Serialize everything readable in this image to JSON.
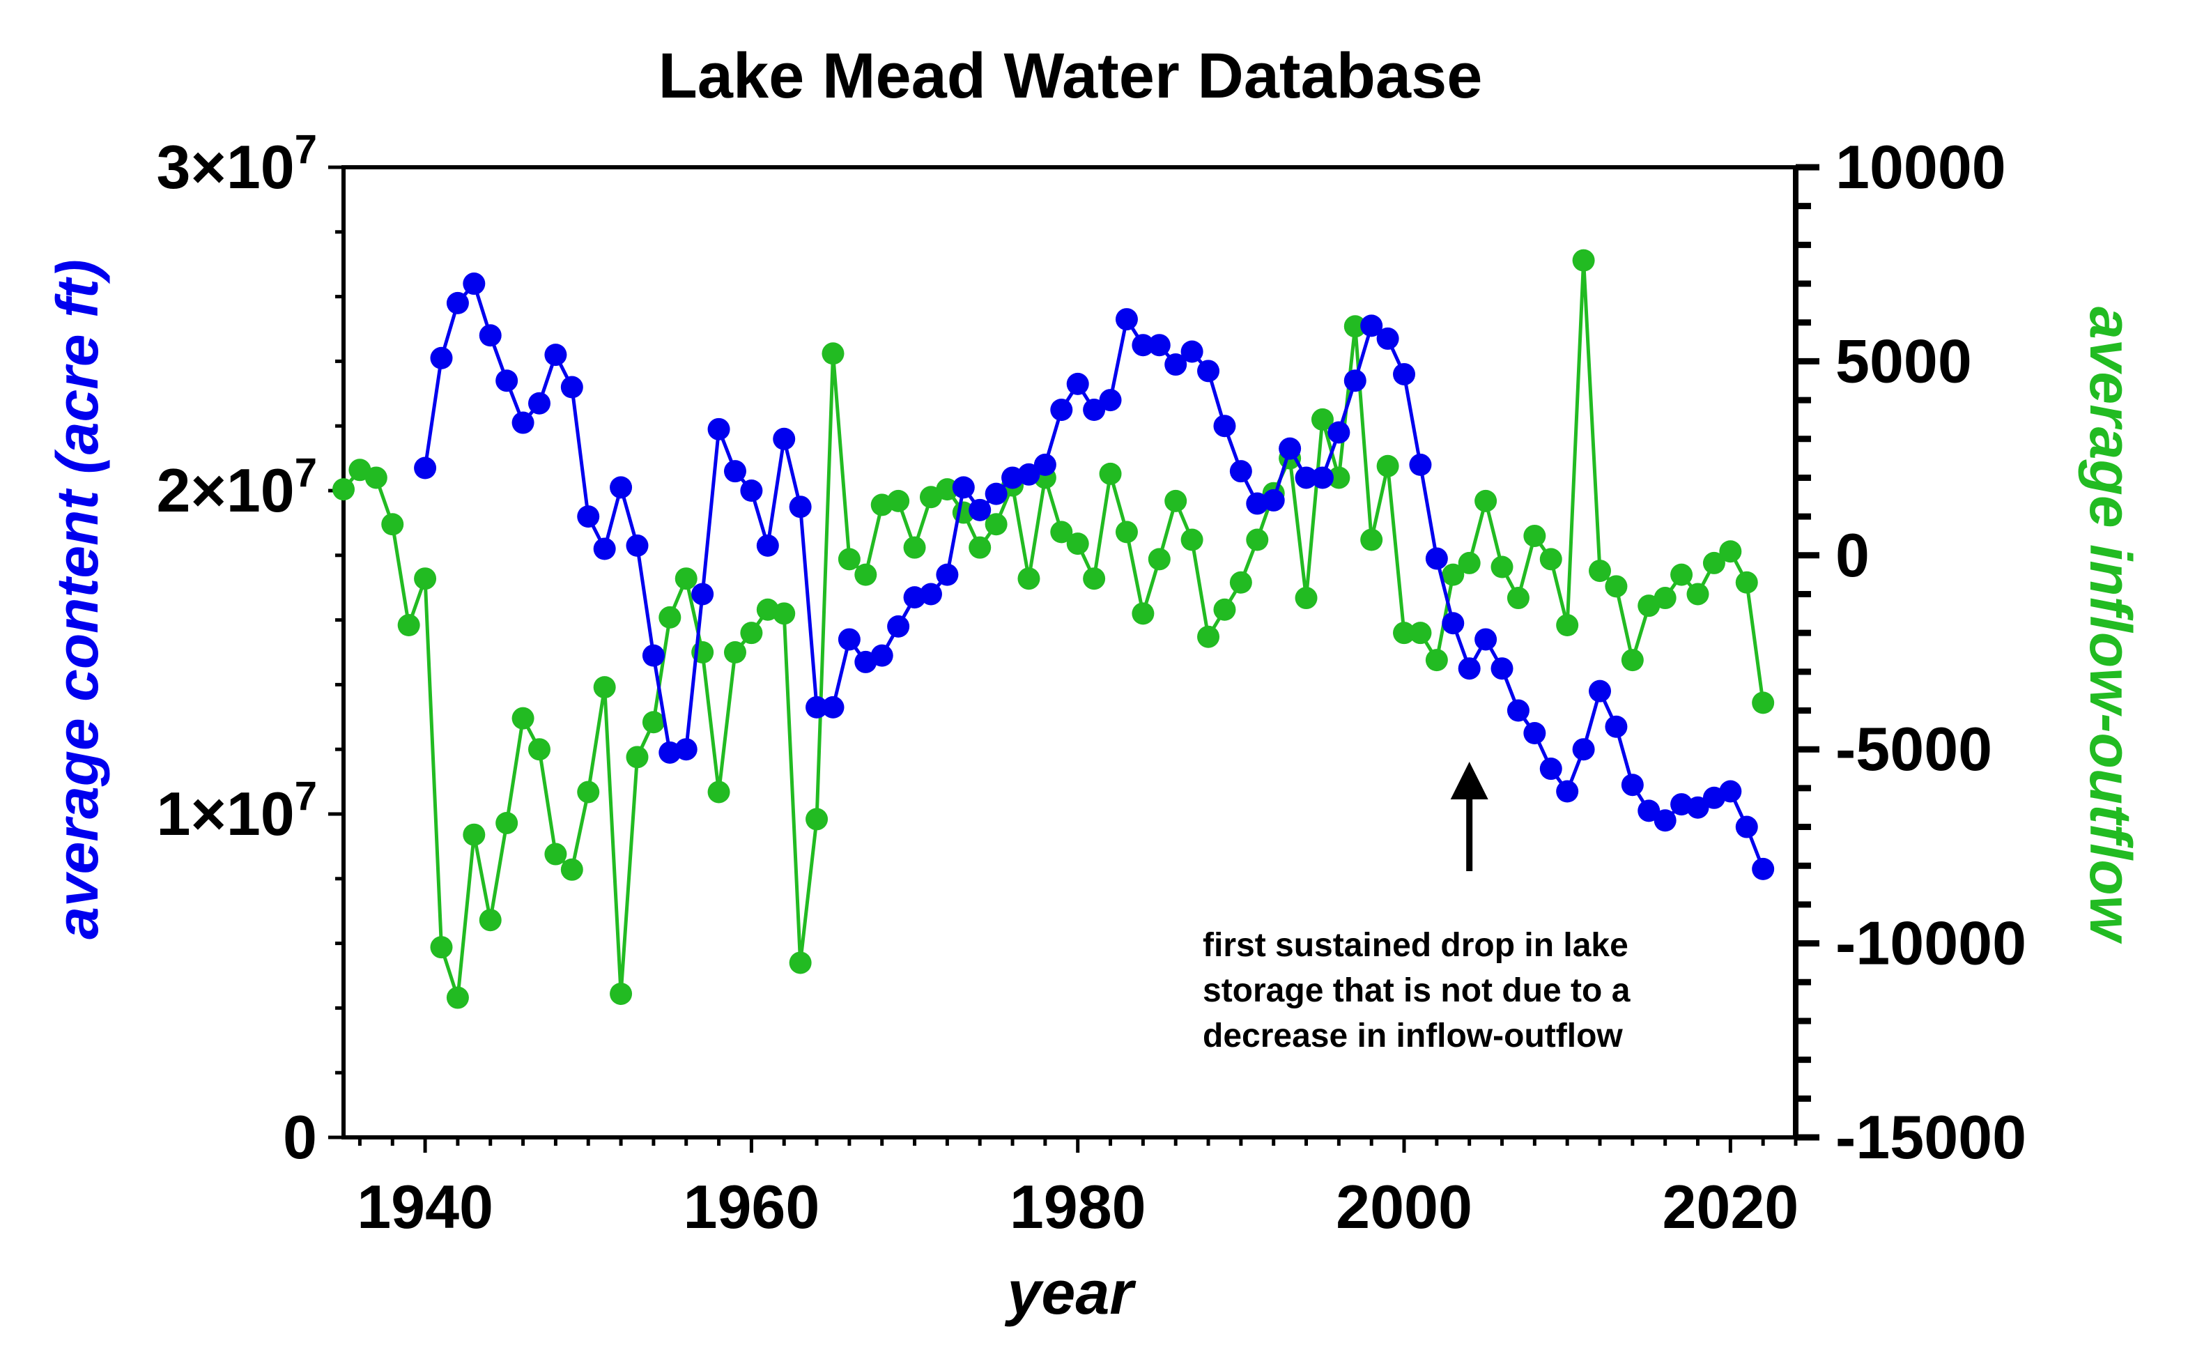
{
  "chart_data": {
    "type": "line",
    "title": "Lake Mead Water Database",
    "xlabel": "year",
    "ylabel_left": "average content (acre ft)",
    "ylabel_right": "average inflow-outflow",
    "xlim": [
      1935,
      2024
    ],
    "ylim_left": [
      0,
      30000000
    ],
    "ylim_right": [
      -15000,
      10000
    ],
    "x_ticks": [
      {
        "value": 1940,
        "label": "1940"
      },
      {
        "value": 1960,
        "label": "1960"
      },
      {
        "value": 1980,
        "label": "1980"
      },
      {
        "value": 2000,
        "label": "2000"
      },
      {
        "value": 2020,
        "label": "2020"
      }
    ],
    "y_left_ticks": [
      {
        "value": 0,
        "mantissa": "0",
        "exponent": ""
      },
      {
        "value": 10000000,
        "mantissa": "1×10",
        "exponent": "7"
      },
      {
        "value": 20000000,
        "mantissa": "2×10",
        "exponent": "7"
      },
      {
        "value": 30000000,
        "mantissa": "3×10",
        "exponent": "7"
      }
    ],
    "y_right_ticks": [
      {
        "value": 10000,
        "label": "10000"
      },
      {
        "value": 5000,
        "label": "5000"
      },
      {
        "value": 0,
        "label": "0"
      },
      {
        "value": -5000,
        "label": "-5000"
      },
      {
        "value": -10000,
        "label": "-10000"
      },
      {
        "value": -15000,
        "label": "-15000"
      }
    ],
    "grid": false,
    "legend": "none",
    "series": [
      {
        "axis": "left",
        "color": "#0000ee",
        "x": [
          1940,
          1941,
          1942,
          1943,
          1944,
          1945,
          1946,
          1947,
          1948,
          1949,
          1950,
          1951,
          1952,
          1953,
          1954,
          1955,
          1956,
          1957,
          1958,
          1959,
          1960,
          1961,
          1962,
          1963,
          1964,
          1965,
          1966,
          1967,
          1968,
          1969,
          1970,
          1971,
          1972,
          1973,
          1974,
          1975,
          1976,
          1977,
          1978,
          1979,
          1980,
          1981,
          1982,
          1983,
          1984,
          1985,
          1986,
          1987,
          1988,
          1989,
          1990,
          1991,
          1992,
          1993,
          1994,
          1995,
          1996,
          1997,
          1998,
          1999,
          2000,
          2001,
          2002,
          2003,
          2004,
          2005,
          2006,
          2007,
          2008,
          2009,
          2010,
          2011,
          2012,
          2013,
          2014,
          2015,
          2016,
          2017,
          2018,
          2019,
          2020,
          2021,
          2022
        ],
        "values": [
          20700000,
          24100000,
          25800000,
          26400000,
          24800000,
          23400000,
          22100000,
          22700000,
          24200000,
          23200000,
          19200000,
          18200000,
          20100000,
          18300000,
          14900000,
          11900000,
          12000000,
          16800000,
          21900000,
          20600000,
          20000000,
          18300000,
          21600000,
          19500000,
          13300000,
          13300000,
          15400000,
          14700000,
          14900000,
          15800000,
          16700000,
          16800000,
          17400000,
          20100000,
          19400000,
          19900000,
          20400000,
          20500000,
          20800000,
          22500000,
          23300000,
          22500000,
          22800000,
          25300000,
          24500000,
          24500000,
          23900000,
          24300000,
          23700000,
          22000000,
          20600000,
          19600000,
          19700000,
          21300000,
          20400000,
          20400000,
          21800000,
          23400000,
          25100000,
          24700000,
          23600000,
          20800000,
          17900000,
          15900000,
          14500000,
          15400000,
          14500000,
          13200000,
          12500000,
          11400000,
          10700000,
          12000000,
          13800000,
          12700000,
          10900000,
          10100000,
          9800000,
          10300000,
          10200000,
          10500000,
          10700000,
          9600000,
          8300000
        ]
      },
      {
        "axis": "right",
        "color": "#22bb22",
        "x": [
          1935,
          1936,
          1937,
          1938,
          1939,
          1940,
          1941,
          1942,
          1943,
          1944,
          1945,
          1946,
          1947,
          1948,
          1949,
          1950,
          1951,
          1952,
          1953,
          1954,
          1955,
          1956,
          1957,
          1958,
          1959,
          1960,
          1961,
          1962,
          1963,
          1964,
          1965,
          1966,
          1967,
          1968,
          1969,
          1970,
          1971,
          1972,
          1973,
          1974,
          1975,
          1976,
          1977,
          1978,
          1979,
          1980,
          1981,
          1982,
          1983,
          1984,
          1985,
          1986,
          1987,
          1988,
          1989,
          1990,
          1991,
          1992,
          1993,
          1994,
          1995,
          1996,
          1997,
          1998,
          1999,
          2000,
          2001,
          2002,
          2003,
          2004,
          2005,
          2006,
          2007,
          2008,
          2009,
          2010,
          2011,
          2012,
          2013,
          2014,
          2015,
          2016,
          2017,
          2018,
          2019,
          2020,
          2021,
          2022
        ],
        "values": [
          1700,
          2200,
          2000,
          800,
          -1800,
          -600,
          -10100,
          -11400,
          -7200,
          -9400,
          -6900,
          -4200,
          -5000,
          -7700,
          -8100,
          -6100,
          -3400,
          -11300,
          -5200,
          -4300,
          -1600,
          -600,
          -2500,
          -6100,
          -2500,
          -2000,
          -1400,
          -1500,
          -10500,
          -6800,
          5200,
          -100,
          -500,
          1300,
          1400,
          200,
          1500,
          1700,
          1100,
          200,
          800,
          1800,
          -600,
          2000,
          600,
          300,
          -600,
          2100,
          600,
          -1500,
          -100,
          1400,
          400,
          -2100,
          -1400,
          -700,
          400,
          1600,
          2500,
          -1100,
          3500,
          2000,
          5900,
          400,
          2300,
          -2000,
          -2000,
          -2700,
          -500,
          -200,
          1400,
          -300,
          -1100,
          500,
          -100,
          -1800,
          7600,
          -400,
          -800,
          -2700,
          -1300,
          -1100,
          -500,
          -1000,
          -200,
          100,
          -700,
          -3800
        ]
      }
    ],
    "annotation": {
      "lines": [
        "first sustained drop in lake",
        "storage that is not due to a",
        "decrease in inflow-outflow"
      ],
      "arrow_x": 2004
    }
  }
}
